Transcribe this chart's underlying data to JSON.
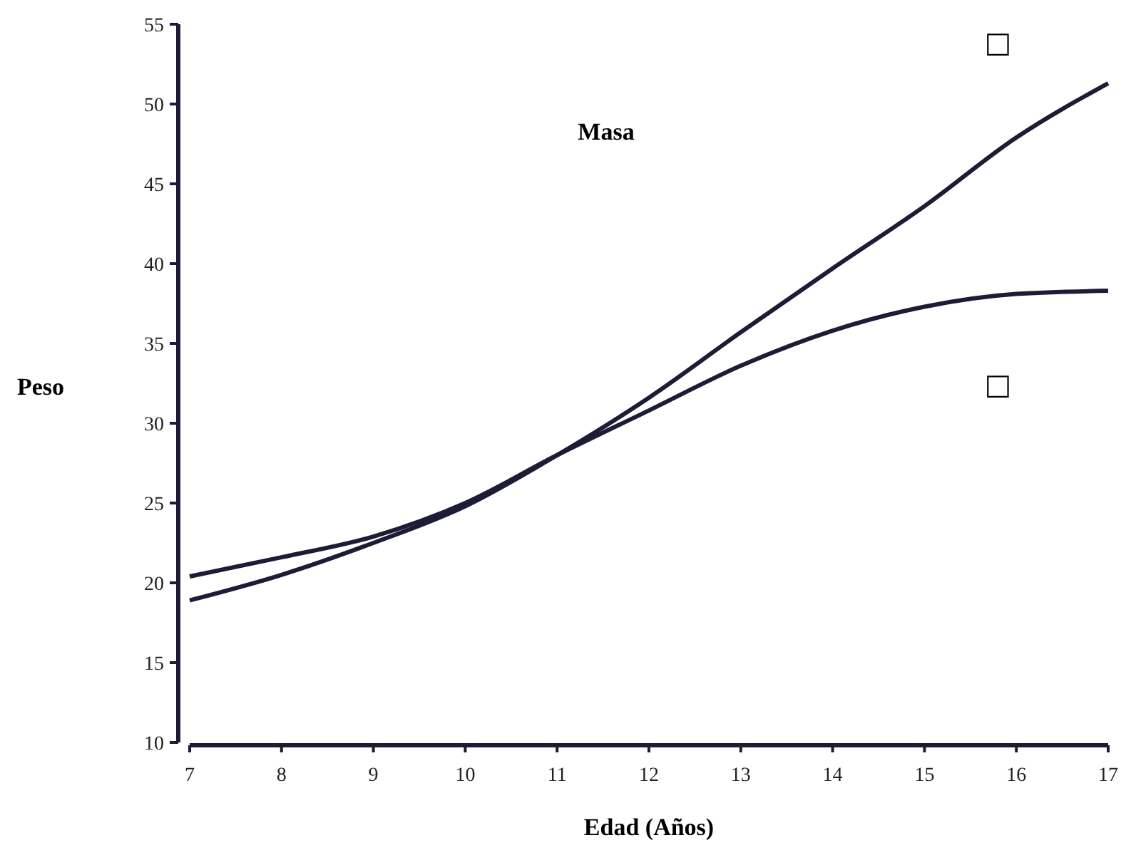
{
  "chart_data": {
    "type": "line",
    "title": "Masa",
    "xlabel": "Edad (Años)",
    "ylabel": "Peso",
    "x": [
      7,
      8,
      9,
      10,
      11,
      12,
      13,
      14,
      15,
      16,
      17
    ],
    "series": [
      {
        "name": "□",
        "color": "#1c1c36",
        "values": [
          18.9,
          20.5,
          22.5,
          24.8,
          28.0,
          31.6,
          35.7,
          39.7,
          43.6,
          47.9,
          51.3
        ]
      },
      {
        "name": "□",
        "color": "#1c1c36",
        "values": [
          20.4,
          21.6,
          22.9,
          25.0,
          28.0,
          30.8,
          33.6,
          35.8,
          37.3,
          38.1,
          38.3
        ]
      }
    ],
    "xlim": [
      7,
      17
    ],
    "xticks": [
      7,
      8,
      9,
      10,
      11,
      12,
      13,
      14,
      15,
      16,
      17
    ],
    "ylim": [
      10,
      55
    ],
    "yticks": [
      10,
      15,
      20,
      25,
      30,
      35,
      40,
      45,
      50,
      55
    ],
    "grid": false,
    "marker": "none",
    "line_style": "solid"
  }
}
